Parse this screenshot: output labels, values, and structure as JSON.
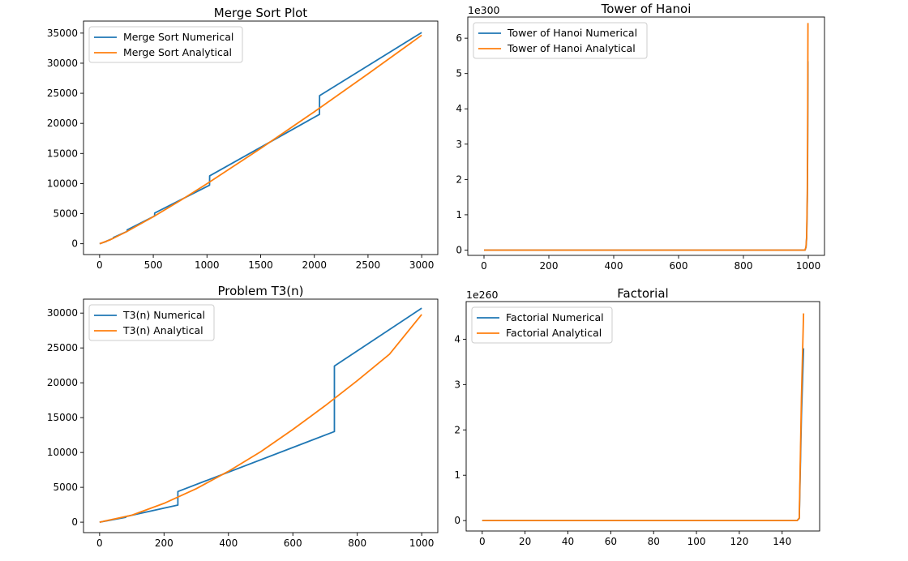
{
  "colors": {
    "numerical": "#1f77b4",
    "analytical": "#ff7f0e"
  },
  "chart_data": [
    {
      "type": "line",
      "title": "Merge Sort Plot",
      "xlabel": "",
      "ylabel": "",
      "xlim": [
        -150,
        3150
      ],
      "ylim": [
        -1800,
        37000
      ],
      "xticks": [
        0,
        500,
        1000,
        1500,
        2000,
        2500,
        3000
      ],
      "yticks": [
        0,
        5000,
        10000,
        15000,
        20000,
        25000,
        30000,
        35000
      ],
      "y_offset_text": "",
      "legend": "top-left",
      "series": [
        {
          "name": "Merge Sort Numerical",
          "color_key": "numerical",
          "x": [
            0,
            64,
            65,
            128,
            129,
            256,
            257,
            512,
            513,
            1024,
            1025,
            2048,
            2049,
            3000
          ],
          "y": [
            0,
            384,
            450,
            900,
            1030,
            2050,
            2300,
            4600,
            5100,
            9730,
            11280,
            21500,
            24600,
            35100
          ]
        },
        {
          "name": "Merge Sort Analytical",
          "color_key": "analytical",
          "x": [
            1,
            100,
            250,
            500,
            750,
            1000,
            1500,
            2000,
            2500,
            3000
          ],
          "y": [
            0,
            660,
            1990,
            4480,
            7160,
            9970,
            15830,
            21930,
            28220,
            34650
          ]
        }
      ]
    },
    {
      "type": "line",
      "title": "Tower of Hanoi",
      "xlabel": "",
      "ylabel": "",
      "xlim": [
        -50,
        1050
      ],
      "ylim": [
        -0.15,
        6.6
      ],
      "xticks": [
        0,
        200,
        400,
        600,
        800,
        1000
      ],
      "yticks": [
        0,
        1,
        2,
        3,
        4,
        5,
        6
      ],
      "y_offset_text": "1e300",
      "legend": "top-left",
      "series": [
        {
          "name": "Tower of Hanoi Numerical",
          "color_key": "numerical",
          "x": [
            0,
            990,
            993,
            995,
            997,
            998,
            999
          ],
          "y": [
            0,
            0,
            0.08,
            0.35,
            1.4,
            2.7,
            5.35
          ]
        },
        {
          "name": "Tower of Hanoi Analytical",
          "color_key": "analytical",
          "x": [
            0,
            990,
            993,
            995,
            997,
            998,
            999
          ],
          "y": [
            0,
            0,
            0.1,
            0.4,
            1.6,
            3.2,
            6.43
          ]
        }
      ]
    },
    {
      "type": "line",
      "title": "Problem T3(n)",
      "xlabel": "",
      "ylabel": "",
      "xlim": [
        -50,
        1050
      ],
      "ylim": [
        -1500,
        32000
      ],
      "xticks": [
        0,
        200,
        400,
        600,
        800,
        1000
      ],
      "yticks": [
        0,
        5000,
        10000,
        15000,
        20000,
        25000,
        30000
      ],
      "y_offset_text": "",
      "legend": "top-left",
      "series": [
        {
          "name": "T3(n) Numerical",
          "color_key": "numerical",
          "x": [
            0,
            81,
            81,
            243,
            243,
            729,
            729,
            1000
          ],
          "y": [
            0,
            700,
            800,
            2450,
            4400,
            13000,
            22400,
            30700
          ]
        },
        {
          "name": "T3(n) Analytical",
          "color_key": "analytical",
          "x": [
            0,
            100,
            200,
            300,
            400,
            500,
            600,
            700,
            800,
            900,
            1000
          ],
          "y": [
            0,
            1000,
            2700,
            4800,
            7300,
            10100,
            13300,
            16700,
            20300,
            24100,
            29800
          ]
        }
      ]
    },
    {
      "type": "line",
      "title": "Factorial",
      "xlabel": "",
      "ylabel": "",
      "xlim": [
        -7.5,
        157.5
      ],
      "ylim": [
        -0.23,
        4.83
      ],
      "xticks": [
        0,
        20,
        40,
        60,
        80,
        100,
        120,
        140
      ],
      "yticks": [
        0,
        1,
        2,
        3,
        4
      ],
      "y_offset_text": "1e260",
      "legend": "top-left",
      "series": [
        {
          "name": "Factorial Numerical",
          "color_key": "numerical",
          "x": [
            0,
            147,
            148,
            149,
            150
          ],
          "y": [
            0,
            0,
            0.05,
            2.3,
            3.8
          ]
        },
        {
          "name": "Factorial Analytical",
          "color_key": "analytical",
          "x": [
            0,
            147,
            148,
            149,
            150
          ],
          "y": [
            0,
            0,
            0.06,
            2.7,
            4.57
          ]
        }
      ]
    }
  ]
}
